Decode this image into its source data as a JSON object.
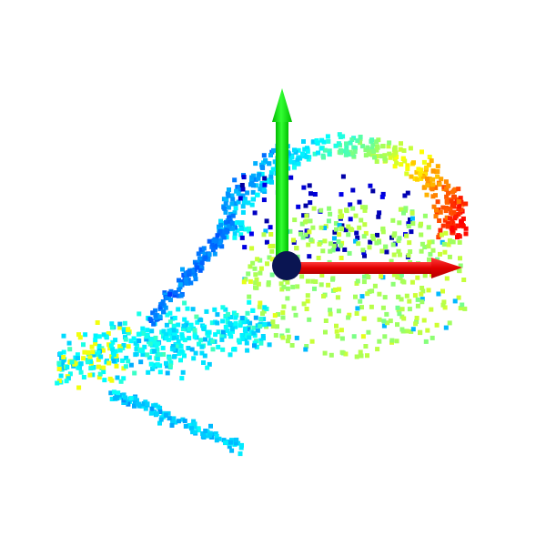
{
  "scene": {
    "type": "3d-point-cloud",
    "background_color": "#ffffff",
    "colormap": "jet",
    "colormap_stops": [
      "#00008f",
      "#0000ff",
      "#0080ff",
      "#00ffff",
      "#80ff80",
      "#ffff00",
      "#ff8000",
      "#ff0000"
    ],
    "axes": [
      {
        "name": "x-axis",
        "color": "#ff0000",
        "direction": "right"
      },
      {
        "name": "y-axis",
        "color": "#00dd00",
        "direction": "up"
      }
    ],
    "origin_marker_color": "#0a1552"
  }
}
